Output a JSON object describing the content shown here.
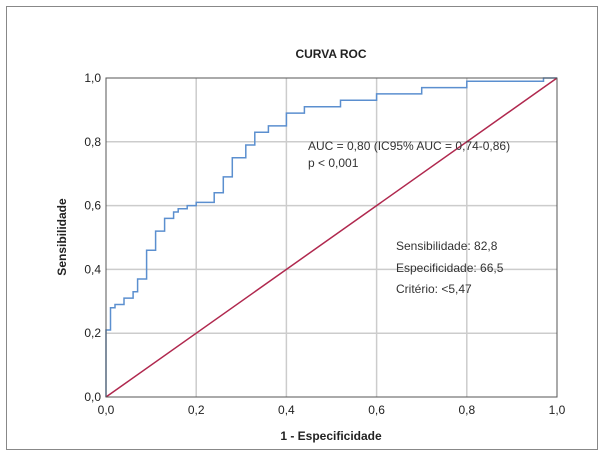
{
  "chart_data": {
    "type": "line",
    "title": "CURVA ROC",
    "xlabel": "1 - Especificidade",
    "ylabel": "Sensibilidade",
    "xlim": [
      0,
      1
    ],
    "ylim": [
      0,
      1
    ],
    "xticks": [
      "0,0",
      "0,2",
      "0,4",
      "0,6",
      "0,8",
      "1,0"
    ],
    "yticks": [
      "0,0",
      "0,2",
      "0,4",
      "0,6",
      "0,8",
      "1,0"
    ],
    "grid": true,
    "series": [
      {
        "color": "#5b8fcf",
        "x": [
          0,
          0,
          0.01,
          0.01,
          0.02,
          0.02,
          0.04,
          0.04,
          0.06,
          0.06,
          0.07,
          0.07,
          0.09,
          0.09,
          0.11,
          0.11,
          0.13,
          0.13,
          0.15,
          0.15,
          0.16,
          0.16,
          0.18,
          0.18,
          0.2,
          0.2,
          0.24,
          0.24,
          0.26,
          0.26,
          0.28,
          0.28,
          0.31,
          0.31,
          0.33,
          0.33,
          0.36,
          0.36,
          0.4,
          0.4,
          0.44,
          0.44,
          0.52,
          0.52,
          0.6,
          0.6,
          0.7,
          0.7,
          0.8,
          0.8,
          0.97,
          0.97,
          1.0
        ],
        "y": [
          0,
          0.21,
          0.21,
          0.28,
          0.28,
          0.29,
          0.29,
          0.31,
          0.31,
          0.33,
          0.33,
          0.37,
          0.37,
          0.46,
          0.46,
          0.52,
          0.52,
          0.56,
          0.56,
          0.58,
          0.58,
          0.59,
          0.59,
          0.6,
          0.6,
          0.61,
          0.61,
          0.64,
          0.64,
          0.69,
          0.69,
          0.75,
          0.75,
          0.79,
          0.79,
          0.83,
          0.83,
          0.85,
          0.85,
          0.89,
          0.89,
          0.91,
          0.91,
          0.93,
          0.93,
          0.95,
          0.95,
          0.97,
          0.97,
          0.99,
          0.99,
          1.0,
          1.0
        ]
      },
      {
        "color": "#b0284e",
        "x": [
          0,
          1
        ],
        "y": [
          0,
          1
        ]
      }
    ],
    "annotations": [
      "AUC = 0,80 (IC95% AUC = 0,74-0,86)",
      "p < 0,001",
      "Sensibilidade: 82,8",
      "Especificidade: 66,5",
      "Critério: <5,47"
    ]
  }
}
